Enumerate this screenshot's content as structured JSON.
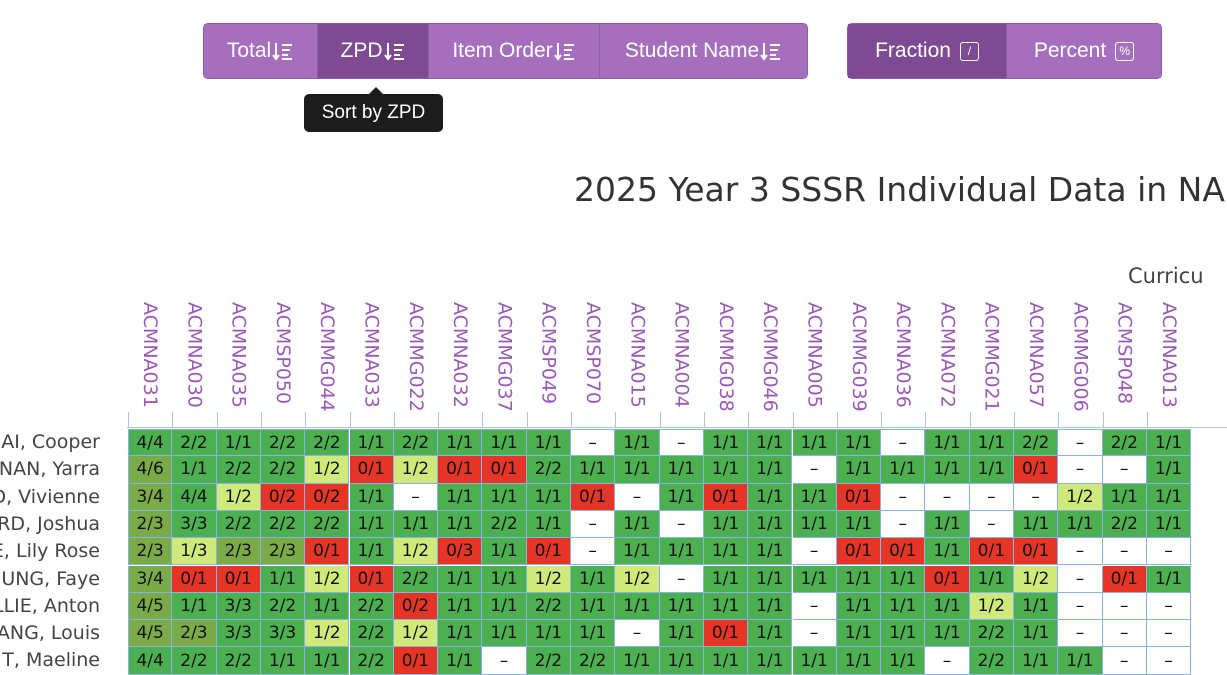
{
  "toolbar": {
    "sort_buttons": [
      {
        "label": "Total",
        "active": false
      },
      {
        "label": "ZPD",
        "active": true
      },
      {
        "label": "Item Order",
        "active": false
      },
      {
        "label": "Student Name",
        "active": false
      }
    ],
    "format_buttons": [
      {
        "label": "Fraction",
        "icon_text": "/",
        "active": true
      },
      {
        "label": "Percent",
        "icon_text": "%",
        "active": false
      }
    ],
    "tooltip": "Sort by ZPD"
  },
  "report": {
    "title": "2025 Year 3 SSSR Individual Data in NA",
    "subtitle": "Curricu"
  },
  "colors": {
    "dark_green": "#7bab48",
    "green": "#4caf50",
    "light_green": "#cfe97a",
    "red": "#e53527",
    "empty": "#ffffff",
    "header": "#9b59b6"
  },
  "columns": [
    "ACMNA031",
    "ACMNA030",
    "ACMNA035",
    "ACMSP050",
    "ACMMG044",
    "ACMNA033",
    "ACMMG022",
    "ACMNA032",
    "ACMMG037",
    "ACMSP049",
    "ACMSP070",
    "ACMNA015",
    "ACMNA004",
    "ACMMG038",
    "ACMMG046",
    "ACMNA005",
    "ACMMG039",
    "ACMNA036",
    "ACMNA072",
    "ACMMG021",
    "ACMNA057",
    "ACMMG006",
    "ACMSP048",
    "ACMNA013"
  ],
  "rows": [
    {
      "name": "AI, Cooper",
      "cells": [
        "4/4",
        "2/2",
        "1/1",
        "2/2",
        "2/2",
        "1/1",
        "2/2",
        "1/1",
        "1/1",
        "1/1",
        "–",
        "1/1",
        "–",
        "1/1",
        "1/1",
        "1/1",
        "1/1",
        "–",
        "1/1",
        "1/1",
        "2/2",
        "–",
        "2/2",
        "1/1"
      ]
    },
    {
      "name": "NAN, Yarra",
      "cells": [
        "4/6",
        "1/1",
        "2/2",
        "2/2",
        "1/2",
        "0/1",
        "1/2",
        "0/1",
        "0/1",
        "2/2",
        "1/1",
        "1/1",
        "1/1",
        "1/1",
        "1/1",
        "–",
        "1/1",
        "1/1",
        "1/1",
        "1/1",
        "0/1",
        "–",
        "–",
        "1/1"
      ]
    },
    {
      "name": "D, Vivienne",
      "cells": [
        "3/4",
        "4/4",
        "1/2",
        "0/2",
        "0/2",
        "1/1",
        "–",
        "1/1",
        "1/1",
        "1/1",
        "0/1",
        "–",
        "1/1",
        "0/1",
        "1/1",
        "1/1",
        "0/1",
        "–",
        "–",
        "–",
        "–",
        "1/2",
        "1/1",
        "1/1"
      ]
    },
    {
      "name": "RD, Joshua",
      "cells": [
        "2/3",
        "3/3",
        "2/2",
        "2/2",
        "2/2",
        "1/1",
        "1/1",
        "1/1",
        "2/2",
        "1/1",
        "–",
        "1/1",
        "–",
        "1/1",
        "1/1",
        "1/1",
        "1/1",
        "–",
        "1/1",
        "–",
        "1/1",
        "1/1",
        "2/2",
        "1/1"
      ]
    },
    {
      "name": "E, Lily Rose",
      "cells": [
        "2/3",
        "1/3",
        "2/3",
        "2/3",
        "0/1",
        "1/1",
        "1/2",
        "0/3",
        "1/1",
        "0/1",
        "–",
        "1/1",
        "1/1",
        "1/1",
        "1/1",
        "–",
        "0/1",
        "0/1",
        "1/1",
        "0/1",
        "0/1",
        "–",
        "–",
        "–"
      ]
    },
    {
      "name": "UNG, Faye",
      "cells": [
        "3/4",
        "0/1",
        "0/1",
        "1/1",
        "1/2",
        "0/1",
        "2/2",
        "1/1",
        "1/1",
        "1/2",
        "1/1",
        "1/2",
        "–",
        "1/1",
        "1/1",
        "1/1",
        "1/1",
        "1/1",
        "0/1",
        "1/1",
        "1/2",
        "–",
        "0/1",
        "1/1"
      ]
    },
    {
      "name": "LLIE, Anton",
      "cells": [
        "4/5",
        "1/1",
        "3/3",
        "2/2",
        "1/1",
        "2/2",
        "0/2",
        "1/1",
        "1/1",
        "2/2",
        "1/1",
        "1/1",
        "1/1",
        "1/1",
        "1/1",
        "–",
        "1/1",
        "1/1",
        "1/1",
        "1/2",
        "1/1",
        "–",
        "–",
        "–"
      ]
    },
    {
      "name": "ANG, Louis",
      "cells": [
        "4/5",
        "2/3",
        "3/3",
        "3/3",
        "1/2",
        "2/2",
        "1/2",
        "1/1",
        "1/1",
        "1/1",
        "1/1",
        "–",
        "1/1",
        "0/1",
        "1/1",
        "–",
        "1/1",
        "1/1",
        "1/1",
        "2/2",
        "1/1",
        "–",
        "–",
        "–"
      ]
    },
    {
      "name": "T, Maeline",
      "cells": [
        "4/4",
        "2/2",
        "2/2",
        "1/1",
        "1/1",
        "2/2",
        "0/1",
        "1/1",
        "–",
        "2/2",
        "2/2",
        "1/1",
        "1/1",
        "1/1",
        "1/1",
        "1/1",
        "1/1",
        "1/1",
        "–",
        "2/2",
        "1/1",
        "1/1",
        "–",
        "–"
      ]
    }
  ]
}
